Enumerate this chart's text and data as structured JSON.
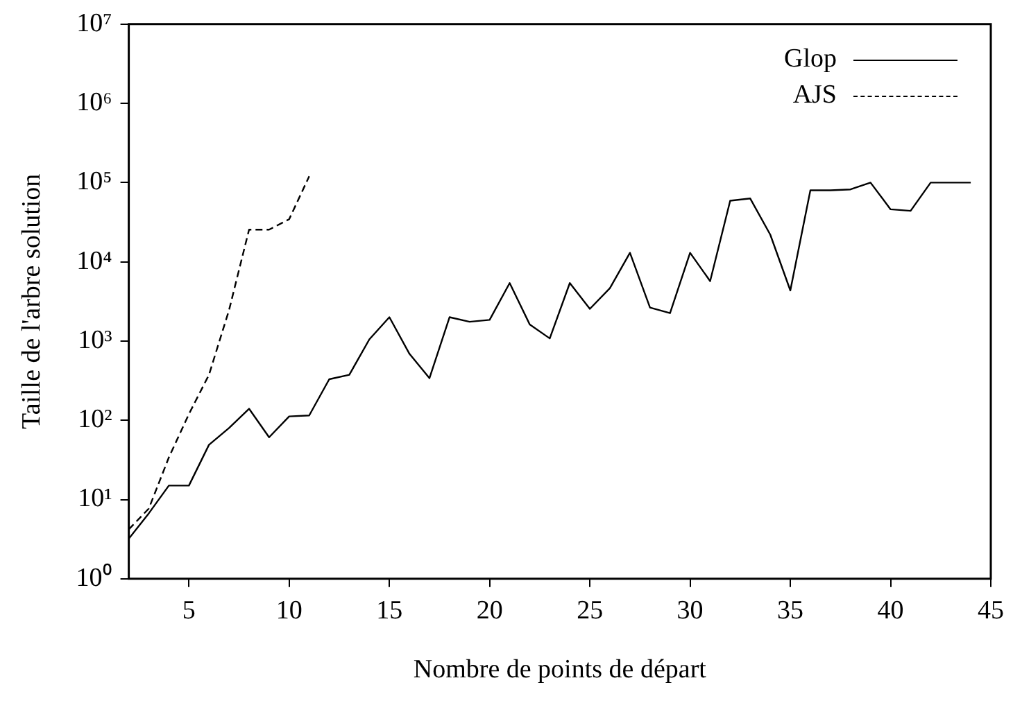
{
  "chart_data": {
    "type": "line",
    "xlabel": "Nombre de points de départ",
    "ylabel": "Taille de l'arbre solution",
    "log": "y",
    "grid": false,
    "legend": "top right",
    "marker": "none",
    "xlim": [
      2,
      45
    ],
    "xticks": [
      5,
      10,
      15,
      20,
      25,
      30,
      35,
      40,
      45
    ],
    "ylim": [
      1,
      10000000
    ],
    "yticks": [
      {
        "value": 1,
        "label": "10⁰"
      },
      {
        "value": 10,
        "label": "10¹"
      },
      {
        "value": 100,
        "label": "10²"
      },
      {
        "value": 1000,
        "label": "10³"
      },
      {
        "value": 10000,
        "label": "10⁴"
      },
      {
        "value": 100000,
        "label": "10⁵"
      },
      {
        "value": 1000000,
        "label": "10⁶"
      },
      {
        "value": 10000000,
        "label": "10⁷"
      }
    ],
    "series": [
      {
        "name": "Glop",
        "color": "#000000",
        "line_style": "solid",
        "x": [
          2,
          3,
          4,
          5,
          6,
          7,
          8,
          9,
          10,
          11,
          12,
          13,
          14,
          15,
          16,
          17,
          18,
          19,
          20,
          21,
          22,
          23,
          24,
          25,
          26,
          27,
          28,
          29,
          30,
          31,
          32,
          33,
          34,
          35,
          36,
          37,
          38,
          39,
          40,
          41,
          42,
          43,
          44
        ],
        "values": [
          3.2,
          6.7,
          15,
          15,
          49,
          80,
          140,
          61,
          112,
          115,
          330,
          375,
          1050,
          2000,
          690,
          340,
          2000,
          1750,
          1850,
          5400,
          1620,
          1080,
          5400,
          2550,
          4650,
          13000,
          2650,
          2250,
          13000,
          5700,
          59000,
          63000,
          22000,
          4350,
          80000,
          80000,
          82000,
          100000,
          46000,
          44000,
          100000,
          100000,
          100000
        ]
      },
      {
        "name": "AJS",
        "color": "#000000",
        "line_style": "dashed",
        "x": [
          2,
          3,
          4,
          5,
          6,
          7,
          8,
          9,
          10,
          11
        ],
        "values": [
          4.2,
          7.7,
          34,
          120,
          375,
          2450,
          25500,
          25500,
          34500,
          120000
        ]
      }
    ]
  }
}
